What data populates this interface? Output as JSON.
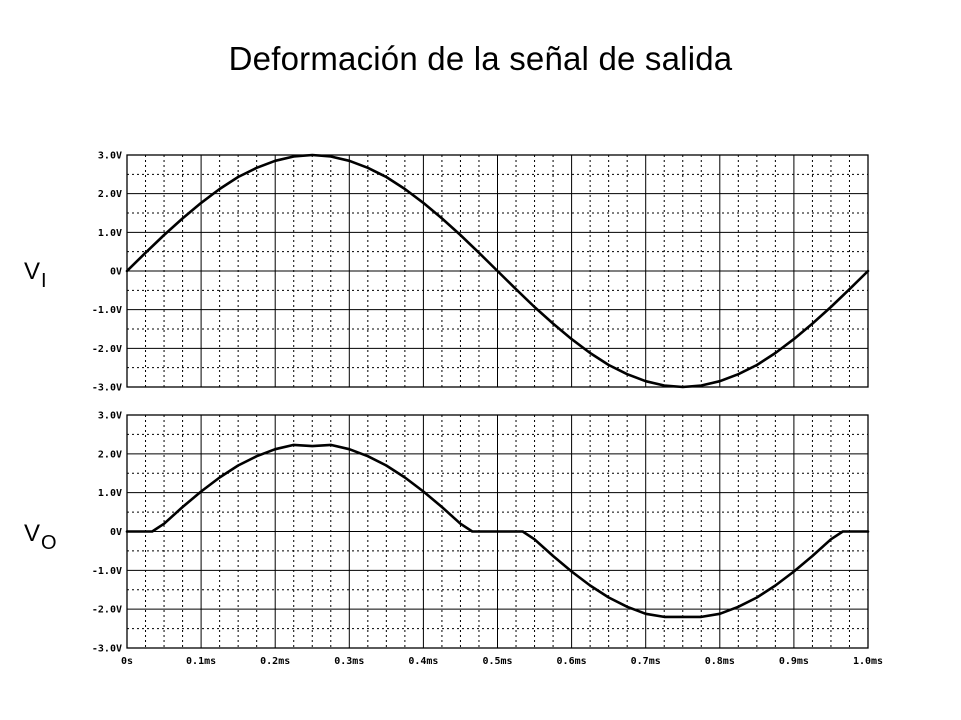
{
  "title": "Deformación de la señal de salida",
  "labels": {
    "vi_main": "V",
    "vi_sub": "I",
    "vo_main": "V",
    "vo_sub": "O"
  },
  "colors": {
    "trace": "#000000",
    "grid": "#000000",
    "background": "#ffffff"
  },
  "chart_data": [
    {
      "type": "line",
      "title": "",
      "xlabel": "",
      "ylabel": "",
      "xlim": [
        0,
        1.0
      ],
      "ylim": [
        -3.0,
        3.0
      ],
      "x_ticks": [
        0,
        0.1,
        0.2,
        0.3,
        0.4,
        0.5,
        0.6,
        0.7,
        0.8,
        0.9,
        1.0
      ],
      "y_ticks": [
        3.0,
        2.0,
        1.0,
        0,
        -1.0,
        -2.0,
        -3.0
      ],
      "y_tick_labels": [
        "3.0V",
        "2.0V",
        "1.0V",
        "0V",
        "-1.0V",
        "-2.0V",
        "-3.0V"
      ],
      "grid": true,
      "series": [
        {
          "x": [
            0,
            0.025,
            0.05,
            0.075,
            0.1,
            0.125,
            0.15,
            0.175,
            0.2,
            0.225,
            0.25,
            0.275,
            0.3,
            0.325,
            0.35,
            0.375,
            0.4,
            0.425,
            0.45,
            0.475,
            0.5,
            0.525,
            0.55,
            0.575,
            0.6,
            0.625,
            0.65,
            0.675,
            0.7,
            0.725,
            0.75,
            0.775,
            0.8,
            0.825,
            0.85,
            0.875,
            0.9,
            0.925,
            0.95,
            0.975,
            1.0
          ],
          "values": [
            0,
            0.47,
            0.93,
            1.36,
            1.76,
            2.12,
            2.43,
            2.67,
            2.85,
            2.96,
            3.0,
            2.96,
            2.85,
            2.67,
            2.43,
            2.12,
            1.76,
            1.36,
            0.93,
            0.47,
            0,
            -0.47,
            -0.93,
            -1.36,
            -1.76,
            -2.12,
            -2.43,
            -2.67,
            -2.85,
            -2.96,
            -3.0,
            -2.96,
            -2.85,
            -2.67,
            -2.43,
            -2.12,
            -1.76,
            -1.36,
            -0.93,
            -0.47,
            0
          ]
        }
      ]
    },
    {
      "type": "line",
      "title": "",
      "xlabel": "",
      "ylabel": "",
      "xlim": [
        0,
        1.0
      ],
      "ylim": [
        -3.0,
        3.0
      ],
      "x_ticks": [
        0,
        0.1,
        0.2,
        0.3,
        0.4,
        0.5,
        0.6,
        0.7,
        0.8,
        0.9,
        1.0
      ],
      "x_tick_labels": [
        "0s",
        "0.1ms",
        "0.2ms",
        "0.3ms",
        "0.4ms",
        "0.5ms",
        "0.6ms",
        "0.7ms",
        "0.8ms",
        "0.9ms",
        "1.0ms"
      ],
      "y_ticks": [
        3.0,
        2.0,
        1.0,
        0,
        -1.0,
        -2.0,
        -3.0
      ],
      "y_tick_labels": [
        "3.0V",
        "2.0V",
        "1.0V",
        "0V",
        "-1.0V",
        "-2.0V",
        "-3.0V"
      ],
      "grid": true,
      "series": [
        {
          "x": [
            0,
            0.025,
            0.034,
            0.05,
            0.075,
            0.1,
            0.125,
            0.15,
            0.175,
            0.2,
            0.225,
            0.25,
            0.275,
            0.3,
            0.325,
            0.35,
            0.375,
            0.4,
            0.425,
            0.45,
            0.466,
            0.5,
            0.534,
            0.55,
            0.575,
            0.6,
            0.625,
            0.65,
            0.675,
            0.7,
            0.725,
            0.75,
            0.775,
            0.8,
            0.825,
            0.85,
            0.875,
            0.9,
            0.925,
            0.95,
            0.966,
            1.0
          ],
          "values": [
            0,
            0,
            0,
            0.2,
            0.63,
            1.03,
            1.39,
            1.7,
            1.94,
            2.12,
            2.23,
            2.2,
            2.23,
            2.12,
            1.94,
            1.7,
            1.39,
            1.03,
            0.63,
            0.2,
            0,
            0,
            0,
            -0.2,
            -0.63,
            -1.03,
            -1.39,
            -1.7,
            -1.94,
            -2.12,
            -2.2,
            -2.2,
            -2.2,
            -2.12,
            -1.94,
            -1.7,
            -1.39,
            -1.03,
            -0.63,
            -0.2,
            0,
            0
          ]
        }
      ]
    }
  ]
}
